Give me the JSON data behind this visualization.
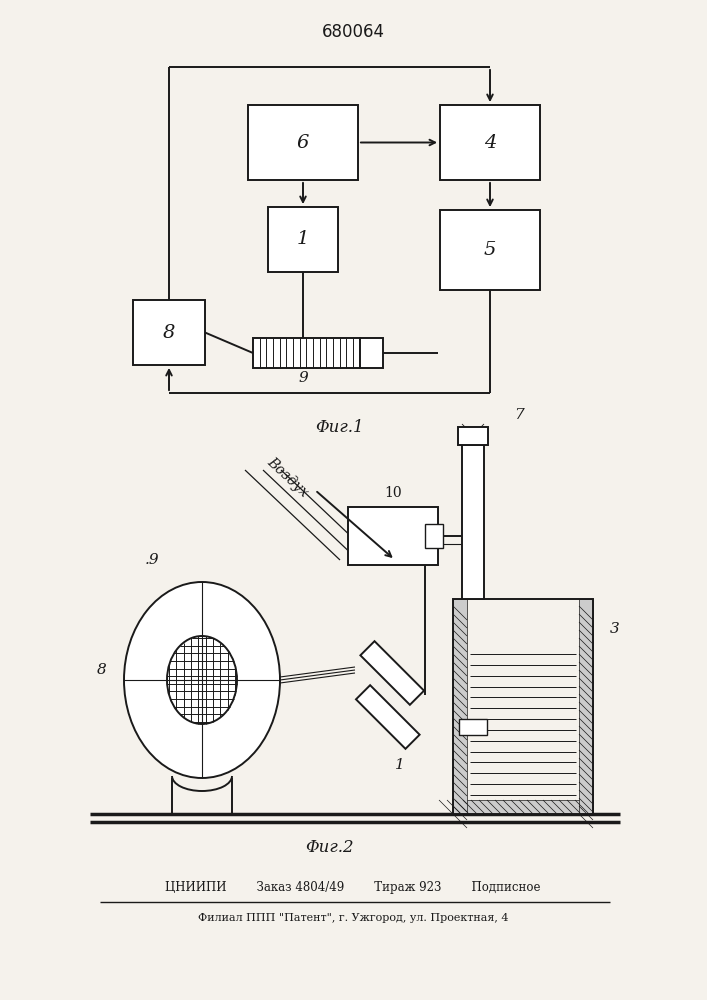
{
  "title": "680064",
  "fig1_caption": "Φиг.1",
  "fig2_caption": "Φиг.2",
  "footer_line1": "ЦНИИПИ        Заказ 4804/49        Тираж 923        Подписное",
  "footer_line2": "Филиал ППП \"Патент\", г. Ужгород, ул. Проектная, 4",
  "bg_color": "#f5f2ec",
  "line_color": "#1a1a1a"
}
